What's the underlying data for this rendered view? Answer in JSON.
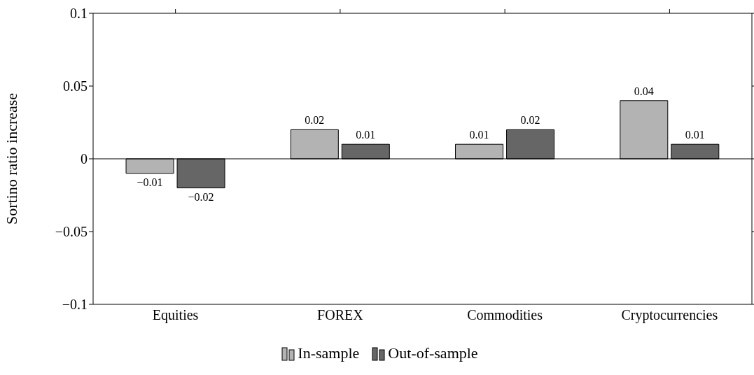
{
  "chart_data": {
    "type": "bar",
    "ylabel": "Sortino ratio increase",
    "categories": [
      "Equities",
      "FOREX",
      "Commodities",
      "Cryptocurrencies"
    ],
    "series": [
      {
        "name": "In-sample",
        "color": "#b3b3b3",
        "values": [
          -0.01,
          0.02,
          0.01,
          0.04
        ]
      },
      {
        "name": "Out-of-sample",
        "color": "#666666",
        "values": [
          -0.02,
          0.01,
          0.02,
          0.01
        ]
      }
    ],
    "ref_lines": [
      {
        "axis": "y",
        "value": 0,
        "color": "#000000"
      }
    ],
    "ylim": [
      -0.1,
      0.1
    ],
    "yticks": [
      -0.1,
      -0.05,
      0,
      0.05,
      0.1
    ],
    "grid": false,
    "legend": "bottom",
    "data_labels": true
  }
}
